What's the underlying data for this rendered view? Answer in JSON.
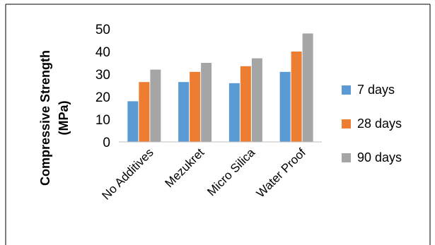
{
  "chart_data": {
    "type": "bar",
    "title": "",
    "xlabel": "",
    "ylabel_lines": [
      "Compressive Strength",
      "(MPa)"
    ],
    "categories": [
      "No Additives",
      "Mezukret",
      "Micro Silica",
      "Water Proof"
    ],
    "series": [
      {
        "name": "7 days",
        "color": "#5B9BD5",
        "values": [
          18,
          26.5,
          26,
          31
        ]
      },
      {
        "name": "28 days",
        "color": "#ED7D31",
        "values": [
          26.5,
          31,
          33.5,
          40
        ]
      },
      {
        "name": "90 days",
        "color": "#A5A5A5",
        "values": [
          32,
          35,
          37,
          48
        ]
      }
    ],
    "ylim": [
      0,
      50
    ],
    "yticks": [
      0,
      10,
      20,
      30,
      40,
      50
    ],
    "grid": false,
    "legend_position": "right"
  }
}
